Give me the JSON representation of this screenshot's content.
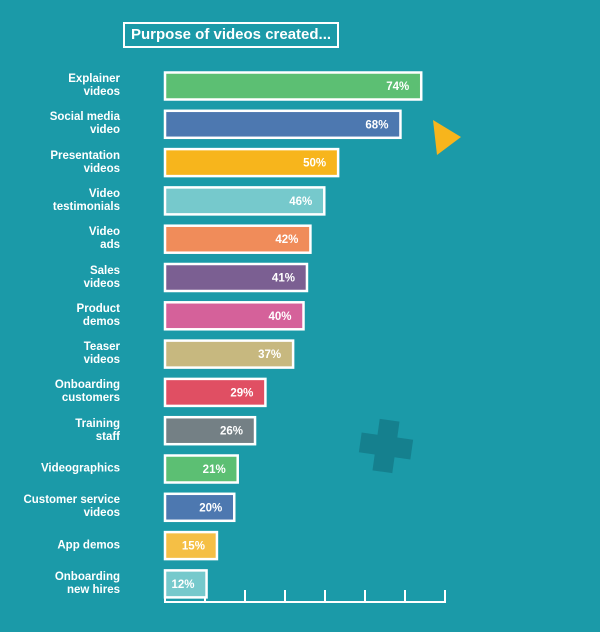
{
  "chart_data": {
    "type": "bar",
    "orientation": "horizontal",
    "title": "Purpose of videos created...",
    "categories": [
      "Explainer\nvideos",
      "Social media\nvideo",
      "Presentation\nvideos",
      "Video\ntestimonials",
      "Video\nads",
      "Sales\nvideos",
      "Product\ndemos",
      "Teaser\nvideos",
      "Onboarding\ncustomers",
      "Training\nstaff",
      "Videographics",
      "Customer service\nvideos",
      "App demos",
      "Onboarding\nnew hires"
    ],
    "values": [
      74,
      68,
      50,
      46,
      42,
      41,
      40,
      37,
      29,
      26,
      21,
      20,
      15,
      12
    ],
    "value_labels": [
      "74%",
      "68%",
      "50%",
      "46%",
      "42%",
      "41%",
      "40%",
      "37%",
      "29%",
      "26%",
      "21%",
      "20%",
      "15%",
      "12%"
    ],
    "colors": [
      "#5cbf73",
      "#4d78b0",
      "#f7b51c",
      "#76c9cc",
      "#f08c5a",
      "#7b5f92",
      "#d5619a",
      "#c7b87f",
      "#e04f63",
      "#748085",
      "#5cbf73",
      "#4d78b0",
      "#f5bf45",
      "#76c9cc"
    ],
    "xlim": [
      0,
      80
    ]
  }
}
